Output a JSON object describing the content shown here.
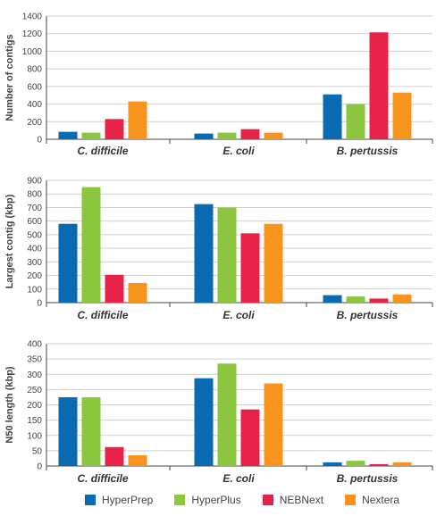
{
  "colors": {
    "HyperPrep": "#0a6bb3",
    "HyperPlus": "#8cc63f",
    "NEBNext": "#e8234a",
    "Nextera": "#f7941d",
    "axis": "#444444",
    "grid": "#cfcfcf"
  },
  "legend": [
    {
      "name": "HyperPrep",
      "color": "#0a6bb3"
    },
    {
      "name": "HyperPlus",
      "color": "#8cc63f"
    },
    {
      "name": "NEBNext",
      "color": "#e8234a"
    },
    {
      "name": "Nextera",
      "color": "#f7941d"
    }
  ],
  "chart_data": [
    {
      "type": "bar",
      "ylabel": "Number of contigs",
      "categories": [
        "C. difficile",
        "E. coli",
        "B. pertussis"
      ],
      "ylim": [
        0,
        1400
      ],
      "yticks": [
        0,
        200,
        400,
        600,
        800,
        1000,
        1200,
        1400
      ],
      "grid": true,
      "series": [
        {
          "name": "HyperPrep",
          "values": [
            85,
            65,
            510
          ]
        },
        {
          "name": "HyperPlus",
          "values": [
            75,
            75,
            400
          ]
        },
        {
          "name": "NEBNext",
          "values": [
            230,
            115,
            1215
          ]
        },
        {
          "name": "Nextera",
          "values": [
            430,
            75,
            530
          ]
        }
      ]
    },
    {
      "type": "bar",
      "ylabel": "Largest contig (kbp)",
      "categories": [
        "C. difficile",
        "E. coli",
        "B. pertussis"
      ],
      "ylim": [
        0,
        900
      ],
      "yticks": [
        0,
        100,
        200,
        300,
        400,
        500,
        600,
        700,
        800,
        900
      ],
      "grid": true,
      "series": [
        {
          "name": "HyperPrep",
          "values": [
            580,
            725,
            55
          ]
        },
        {
          "name": "HyperPlus",
          "values": [
            850,
            700,
            45
          ]
        },
        {
          "name": "NEBNext",
          "values": [
            205,
            510,
            30
          ]
        },
        {
          "name": "Nextera",
          "values": [
            145,
            580,
            60
          ]
        }
      ]
    },
    {
      "type": "bar",
      "ylabel": "N50 length (kbp)",
      "categories": [
        "C. difficile",
        "E. coli",
        "B. pertussis"
      ],
      "ylim": [
        0,
        400
      ],
      "yticks": [
        0,
        50,
        100,
        150,
        200,
        250,
        300,
        350,
        400
      ],
      "grid": true,
      "series": [
        {
          "name": "HyperPrep",
          "values": [
            225,
            287,
            12
          ]
        },
        {
          "name": "HyperPlus",
          "values": [
            225,
            335,
            17
          ]
        },
        {
          "name": "NEBNext",
          "values": [
            62,
            185,
            6
          ]
        },
        {
          "name": "Nextera",
          "values": [
            35,
            270,
            12
          ]
        }
      ]
    }
  ]
}
